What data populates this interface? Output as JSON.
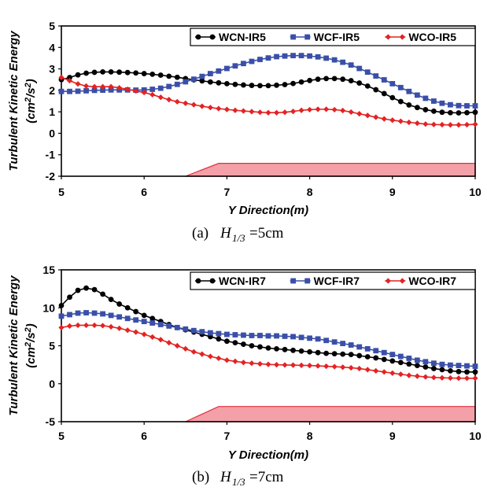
{
  "chart_data": [
    {
      "type": "line",
      "panel": "a",
      "caption": {
        "label": "(a)",
        "symbol": "H",
        "subscript": "1/3",
        "value": "=5cm"
      },
      "xlabel": "Y Direction(m)",
      "ylabel": "Turbulent Kinetic Energy",
      "ylabel_unit": {
        "a": "(cm",
        "b": "2",
        "c": "/s",
        "d": "2",
        "e": ")"
      },
      "xlim": [
        5,
        10
      ],
      "ylim": [
        -2,
        5
      ],
      "xticks": [
        "5",
        "6",
        "7",
        "8",
        "9",
        "10"
      ],
      "yticks": [
        "5",
        "4",
        "3",
        "2",
        "1",
        "0",
        "-1",
        "-2"
      ],
      "bathymetry": {
        "color": "#f4a0a8",
        "stroke": "#e0303e",
        "points": [
          [
            6.5,
            -2
          ],
          [
            6.9,
            -1.4
          ],
          [
            10,
            -1.4
          ],
          [
            10,
            -2
          ]
        ]
      },
      "series": [
        {
          "name": "WCN-IR5",
          "color": "#000000",
          "marker": "circle",
          "x": [
            5.0,
            5.1,
            5.2,
            5.3,
            5.4,
            5.5,
            5.6,
            5.7,
            5.8,
            5.9,
            6.0,
            6.1,
            6.2,
            6.3,
            6.4,
            6.5,
            6.6,
            6.7,
            6.8,
            6.9,
            7.0,
            7.1,
            7.2,
            7.3,
            7.4,
            7.5,
            7.6,
            7.7,
            7.8,
            7.9,
            8.0,
            8.1,
            8.2,
            8.3,
            8.4,
            8.5,
            8.6,
            8.7,
            8.8,
            8.9,
            9.0,
            9.1,
            9.2,
            9.3,
            9.4,
            9.5,
            9.6,
            9.7,
            9.8,
            9.9,
            10.0
          ],
          "values": [
            2.5,
            2.6,
            2.72,
            2.8,
            2.84,
            2.86,
            2.86,
            2.85,
            2.83,
            2.81,
            2.78,
            2.75,
            2.71,
            2.66,
            2.61,
            2.55,
            2.49,
            2.44,
            2.39,
            2.35,
            2.31,
            2.28,
            2.25,
            2.23,
            2.22,
            2.22,
            2.24,
            2.27,
            2.32,
            2.39,
            2.46,
            2.52,
            2.55,
            2.55,
            2.52,
            2.45,
            2.34,
            2.2,
            2.03,
            1.85,
            1.66,
            1.48,
            1.32,
            1.2,
            1.1,
            1.03,
            0.98,
            0.96,
            0.95,
            0.96,
            0.98
          ]
        },
        {
          "name": "WCF-IR5",
          "color": "#3a4fa8",
          "marker": "square",
          "x": [
            5.0,
            5.1,
            5.2,
            5.3,
            5.4,
            5.5,
            5.6,
            5.7,
            5.8,
            5.9,
            6.0,
            6.1,
            6.2,
            6.3,
            6.4,
            6.5,
            6.6,
            6.7,
            6.8,
            6.9,
            7.0,
            7.1,
            7.2,
            7.3,
            7.4,
            7.5,
            7.6,
            7.7,
            7.8,
            7.9,
            8.0,
            8.1,
            8.2,
            8.3,
            8.4,
            8.5,
            8.6,
            8.7,
            8.8,
            8.9,
            9.0,
            9.1,
            9.2,
            9.3,
            9.4,
            9.5,
            9.6,
            9.7,
            9.8,
            9.9,
            10.0
          ],
          "values": [
            1.95,
            1.95,
            1.96,
            1.98,
            2.0,
            2.01,
            2.02,
            2.02,
            2.02,
            2.01,
            2.02,
            2.05,
            2.1,
            2.18,
            2.28,
            2.4,
            2.52,
            2.65,
            2.78,
            2.9,
            3.02,
            3.14,
            3.25,
            3.35,
            3.44,
            3.51,
            3.57,
            3.6,
            3.62,
            3.62,
            3.6,
            3.56,
            3.5,
            3.42,
            3.31,
            3.18,
            3.02,
            2.85,
            2.67,
            2.49,
            2.31,
            2.13,
            1.95,
            1.78,
            1.63,
            1.5,
            1.4,
            1.33,
            1.29,
            1.28,
            1.28
          ]
        },
        {
          "name": "WCO-IR5",
          "color": "#e32323",
          "marker": "diamond",
          "x": [
            5.0,
            5.1,
            5.2,
            5.3,
            5.4,
            5.5,
            5.6,
            5.7,
            5.8,
            5.9,
            6.0,
            6.1,
            6.2,
            6.3,
            6.4,
            6.5,
            6.6,
            6.7,
            6.8,
            6.9,
            7.0,
            7.1,
            7.2,
            7.3,
            7.4,
            7.5,
            7.6,
            7.7,
            7.8,
            7.9,
            8.0,
            8.1,
            8.2,
            8.3,
            8.4,
            8.5,
            8.6,
            8.7,
            8.8,
            8.9,
            9.0,
            9.1,
            9.2,
            9.3,
            9.4,
            9.5,
            9.6,
            9.7,
            9.8,
            9.9,
            10.0
          ],
          "values": [
            2.6,
            2.45,
            2.3,
            2.2,
            2.17,
            2.17,
            2.17,
            2.12,
            2.05,
            1.97,
            1.9,
            1.8,
            1.68,
            1.57,
            1.47,
            1.4,
            1.33,
            1.26,
            1.2,
            1.15,
            1.11,
            1.07,
            1.04,
            1.01,
            0.98,
            0.96,
            0.96,
            0.98,
            1.02,
            1.07,
            1.1,
            1.12,
            1.12,
            1.1,
            1.06,
            0.99,
            0.91,
            0.83,
            0.75,
            0.67,
            0.61,
            0.56,
            0.51,
            0.47,
            0.43,
            0.41,
            0.4,
            0.39,
            0.39,
            0.4,
            0.42
          ]
        }
      ]
    },
    {
      "type": "line",
      "panel": "b",
      "caption": {
        "label": "(b)",
        "symbol": "H",
        "subscript": "1/3",
        "value": "=7cm"
      },
      "xlabel": "Y Direction(m)",
      "ylabel": "Turbulent Kinetic Energy",
      "ylabel_unit": {
        "a": "(cm",
        "b": "2",
        "c": "/s",
        "d": "2",
        "e": ")"
      },
      "xlim": [
        5,
        10
      ],
      "ylim": [
        -5,
        15
      ],
      "xticks": [
        "5",
        "6",
        "7",
        "8",
        "9",
        "10"
      ],
      "yticks": [
        "15",
        "10",
        "5",
        "0",
        "-5"
      ],
      "bathymetry": {
        "color": "#f4a0a8",
        "stroke": "#e0303e",
        "points": [
          [
            6.5,
            -5
          ],
          [
            6.9,
            -3
          ],
          [
            10,
            -3
          ],
          [
            10,
            -5
          ]
        ]
      },
      "series": [
        {
          "name": "WCN-IR7",
          "color": "#000000",
          "marker": "circle",
          "x": [
            5.0,
            5.1,
            5.2,
            5.3,
            5.4,
            5.5,
            5.6,
            5.7,
            5.8,
            5.9,
            6.0,
            6.1,
            6.2,
            6.3,
            6.4,
            6.5,
            6.6,
            6.7,
            6.8,
            6.9,
            7.0,
            7.1,
            7.2,
            7.3,
            7.4,
            7.5,
            7.6,
            7.7,
            7.8,
            7.9,
            8.0,
            8.1,
            8.2,
            8.3,
            8.4,
            8.5,
            8.6,
            8.7,
            8.8,
            8.9,
            9.0,
            9.1,
            9.2,
            9.3,
            9.4,
            9.5,
            9.6,
            9.7,
            9.8,
            9.9,
            10.0
          ],
          "values": [
            10.3,
            11.4,
            12.3,
            12.6,
            12.4,
            11.8,
            11.1,
            10.5,
            10.0,
            9.5,
            9.0,
            8.6,
            8.2,
            7.8,
            7.4,
            7.1,
            6.8,
            6.5,
            6.2,
            5.9,
            5.6,
            5.4,
            5.2,
            5.0,
            4.85,
            4.7,
            4.6,
            4.5,
            4.4,
            4.3,
            4.2,
            4.1,
            4.0,
            3.95,
            3.9,
            3.85,
            3.7,
            3.55,
            3.4,
            3.2,
            3.0,
            2.8,
            2.6,
            2.4,
            2.2,
            2.0,
            1.85,
            1.7,
            1.6,
            1.55,
            1.55
          ]
        },
        {
          "name": "WCF-IR7",
          "color": "#3a4fa8",
          "marker": "square",
          "x": [
            5.0,
            5.1,
            5.2,
            5.3,
            5.4,
            5.5,
            5.6,
            5.7,
            5.8,
            5.9,
            6.0,
            6.1,
            6.2,
            6.3,
            6.4,
            6.5,
            6.6,
            6.7,
            6.8,
            6.9,
            7.0,
            7.1,
            7.2,
            7.3,
            7.4,
            7.5,
            7.6,
            7.7,
            7.8,
            7.9,
            8.0,
            8.1,
            8.2,
            8.3,
            8.4,
            8.5,
            8.6,
            8.7,
            8.8,
            8.9,
            9.0,
            9.1,
            9.2,
            9.3,
            9.4,
            9.5,
            9.6,
            9.7,
            9.8,
            9.9,
            10.0
          ],
          "values": [
            8.9,
            9.1,
            9.3,
            9.35,
            9.3,
            9.2,
            9.0,
            8.8,
            8.6,
            8.4,
            8.2,
            8.0,
            7.8,
            7.6,
            7.4,
            7.2,
            7.0,
            6.85,
            6.7,
            6.6,
            6.5,
            6.45,
            6.4,
            6.35,
            6.35,
            6.3,
            6.3,
            6.25,
            6.2,
            6.1,
            6.0,
            5.9,
            5.7,
            5.5,
            5.3,
            5.1,
            4.85,
            4.6,
            4.35,
            4.1,
            3.85,
            3.6,
            3.35,
            3.1,
            2.9,
            2.7,
            2.55,
            2.45,
            2.4,
            2.35,
            2.3
          ]
        },
        {
          "name": "WCO-IR7",
          "color": "#e32323",
          "marker": "diamond",
          "x": [
            5.0,
            5.1,
            5.2,
            5.3,
            5.4,
            5.5,
            5.6,
            5.7,
            5.8,
            5.9,
            6.0,
            6.1,
            6.2,
            6.3,
            6.4,
            6.5,
            6.6,
            6.7,
            6.8,
            6.9,
            7.0,
            7.1,
            7.2,
            7.3,
            7.4,
            7.5,
            7.6,
            7.7,
            7.8,
            7.9,
            8.0,
            8.1,
            8.2,
            8.3,
            8.4,
            8.5,
            8.6,
            8.7,
            8.8,
            8.9,
            9.0,
            9.1,
            9.2,
            9.3,
            9.4,
            9.5,
            9.6,
            9.7,
            9.8,
            9.9,
            10.0
          ],
          "values": [
            7.4,
            7.6,
            7.7,
            7.7,
            7.7,
            7.65,
            7.5,
            7.3,
            7.05,
            6.8,
            6.5,
            6.15,
            5.8,
            5.4,
            5.0,
            4.6,
            4.2,
            3.9,
            3.6,
            3.35,
            3.1,
            2.95,
            2.8,
            2.7,
            2.62,
            2.55,
            2.5,
            2.47,
            2.45,
            2.42,
            2.4,
            2.35,
            2.3,
            2.25,
            2.18,
            2.1,
            2.0,
            1.85,
            1.7,
            1.55,
            1.4,
            1.25,
            1.1,
            1.0,
            0.9,
            0.82,
            0.78,
            0.75,
            0.73,
            0.72,
            0.72
          ]
        }
      ]
    }
  ]
}
